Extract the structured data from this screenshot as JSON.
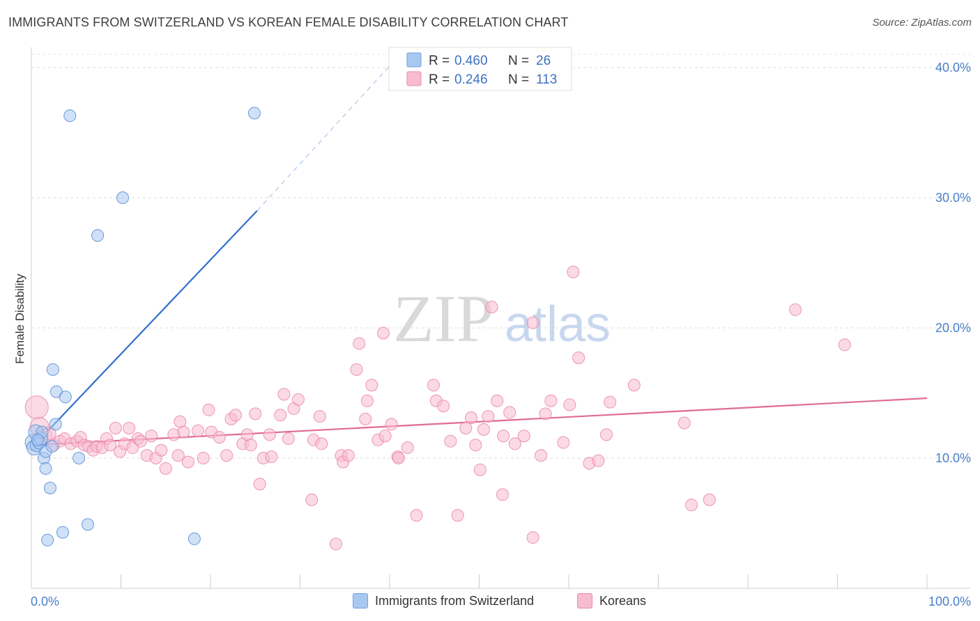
{
  "header": {
    "title": "IMMIGRANTS FROM SWITZERLAND VS KOREAN FEMALE DISABILITY CORRELATION CHART",
    "source": "Source: ZipAtlas.com"
  },
  "watermark": {
    "part1": "ZIP",
    "part2": "atlas"
  },
  "chart_data": {
    "type": "scatter",
    "ylabel": "Female Disability",
    "xlim": [
      0,
      100
    ],
    "ylim": [
      0,
      42
    ],
    "x_tick_labels": [
      {
        "value": 0,
        "label": "0.0%"
      },
      {
        "value": 100,
        "label": "100.0%"
      }
    ],
    "y_ticks": [
      {
        "value": 10,
        "label": "10.0%"
      },
      {
        "value": 20,
        "label": "20.0%"
      },
      {
        "value": 30,
        "label": "30.0%"
      },
      {
        "value": 40,
        "label": "40.0%"
      }
    ],
    "grid": "horizontal-dashed",
    "legend_top": [
      {
        "r_label": "R = ",
        "r_value": "0.460",
        "n_label": "N = ",
        "n_value": "26",
        "color": "#a9c8f0",
        "stroke": "#6e9fe0"
      },
      {
        "r_label": "R = ",
        "r_value": "0.246",
        "n_label": "N = ",
        "n_value": "113",
        "color": "#f7bcd0",
        "stroke": "#ea8aab"
      }
    ],
    "series": [
      {
        "name": "Immigrants from Switzerland",
        "color": "#a9c8f0",
        "stroke": "#5b8fd6",
        "trend_color": "#2f6fcc",
        "trend": {
          "x1": 0.2,
          "y1": 10.9,
          "x2": 25.2,
          "y2": 29.0,
          "dash_to_x": 40.5,
          "dash_to_y": 40.5
        },
        "points": [
          [
            0.2,
            11.2,
            10
          ],
          [
            0.3,
            10.8,
            9
          ],
          [
            0.5,
            12.0,
            9
          ],
          [
            0.6,
            11.0,
            8
          ],
          [
            0.9,
            11.2,
            8
          ],
          [
            1.1,
            11.5,
            8
          ],
          [
            1.2,
            12.0,
            7
          ],
          [
            1.4,
            10.0,
            7
          ],
          [
            1.6,
            9.2,
            7
          ],
          [
            1.6,
            10.5,
            7
          ],
          [
            1.8,
            3.7,
            7
          ],
          [
            2.1,
            7.7,
            7
          ],
          [
            2.3,
            10.9,
            7
          ],
          [
            2.4,
            16.8,
            7
          ],
          [
            2.7,
            12.6,
            7
          ],
          [
            2.8,
            15.1,
            7
          ],
          [
            3.5,
            4.3,
            7
          ],
          [
            3.8,
            14.7,
            7
          ],
          [
            4.3,
            36.3,
            7
          ],
          [
            5.3,
            10.0,
            7
          ],
          [
            6.3,
            4.9,
            7
          ],
          [
            7.4,
            27.1,
            7
          ],
          [
            10.2,
            30.0,
            7
          ],
          [
            18.2,
            3.8,
            7
          ],
          [
            24.9,
            36.5,
            7
          ],
          [
            0.7,
            11.4,
            7
          ]
        ]
      },
      {
        "name": "Koreans",
        "color": "#f7bcd0",
        "stroke": "#ea8aab",
        "trend_color": "#e06a96",
        "trend": {
          "x1": 0.2,
          "y1": 11.0,
          "x2": 100,
          "y2": 14.6
        },
        "points": [
          [
            0.6,
            13.9,
            15
          ],
          [
            0.9,
            12.4,
            12
          ],
          [
            1.5,
            11.7,
            9
          ],
          [
            2.0,
            11.9,
            8
          ],
          [
            2.5,
            11.0,
            7
          ],
          [
            3.2,
            11.3,
            7
          ],
          [
            3.7,
            11.5,
            7
          ],
          [
            4.4,
            11.1,
            7
          ],
          [
            5.1,
            11.3,
            7
          ],
          [
            5.5,
            11.6,
            7
          ],
          [
            5.9,
            11.0,
            7
          ],
          [
            6.4,
            10.9,
            7
          ],
          [
            6.9,
            10.6,
            7
          ],
          [
            7.3,
            10.9,
            7
          ],
          [
            7.9,
            10.8,
            7
          ],
          [
            8.4,
            11.5,
            7
          ],
          [
            8.8,
            11.0,
            7
          ],
          [
            9.4,
            12.3,
            7
          ],
          [
            9.9,
            10.5,
            7
          ],
          [
            10.4,
            11.1,
            7
          ],
          [
            10.9,
            12.3,
            7
          ],
          [
            11.3,
            10.8,
            7
          ],
          [
            11.9,
            11.5,
            7
          ],
          [
            12.2,
            11.3,
            7
          ],
          [
            12.9,
            10.2,
            7
          ],
          [
            13.4,
            11.7,
            7
          ],
          [
            13.9,
            10.0,
            7
          ],
          [
            14.5,
            10.6,
            7
          ],
          [
            15.0,
            9.2,
            7
          ],
          [
            15.9,
            11.8,
            7
          ],
          [
            16.4,
            10.2,
            7
          ],
          [
            16.6,
            12.8,
            7
          ],
          [
            17.0,
            12.0,
            7
          ],
          [
            17.5,
            9.7,
            7
          ],
          [
            18.6,
            12.1,
            7
          ],
          [
            19.2,
            10.0,
            7
          ],
          [
            19.8,
            13.7,
            7
          ],
          [
            20.1,
            12.0,
            7
          ],
          [
            21.0,
            11.6,
            7
          ],
          [
            21.8,
            10.2,
            7
          ],
          [
            22.3,
            13.0,
            7
          ],
          [
            22.8,
            13.3,
            7
          ],
          [
            23.6,
            11.1,
            7
          ],
          [
            24.1,
            11.8,
            7
          ],
          [
            24.5,
            11.0,
            7
          ],
          [
            25.0,
            13.4,
            7
          ],
          [
            25.5,
            8.0,
            7
          ],
          [
            25.9,
            10.0,
            7
          ],
          [
            26.8,
            10.1,
            7
          ],
          [
            26.6,
            11.8,
            7
          ],
          [
            27.8,
            13.3,
            7
          ],
          [
            28.2,
            14.9,
            7
          ],
          [
            28.7,
            11.5,
            7
          ],
          [
            29.3,
            13.8,
            7
          ],
          [
            29.8,
            14.5,
            7
          ],
          [
            31.3,
            6.8,
            7
          ],
          [
            31.5,
            11.4,
            7
          ],
          [
            32.2,
            13.2,
            7
          ],
          [
            32.4,
            11.1,
            7
          ],
          [
            34.0,
            3.4,
            7
          ],
          [
            34.6,
            10.2,
            7
          ],
          [
            34.8,
            9.7,
            7
          ],
          [
            35.4,
            10.2,
            7
          ],
          [
            36.3,
            16.8,
            7
          ],
          [
            36.6,
            18.8,
            7
          ],
          [
            37.5,
            14.4,
            7
          ],
          [
            37.3,
            13.0,
            7
          ],
          [
            38.0,
            15.6,
            7
          ],
          [
            38.7,
            11.4,
            7
          ],
          [
            39.3,
            19.6,
            7
          ],
          [
            39.5,
            11.7,
            7
          ],
          [
            40.2,
            12.6,
            7
          ],
          [
            40.9,
            10.1,
            7
          ],
          [
            41.0,
            10.0,
            7
          ],
          [
            42.0,
            10.8,
            7
          ],
          [
            43.0,
            5.6,
            7
          ],
          [
            44.9,
            15.6,
            7
          ],
          [
            45.2,
            14.4,
            7
          ],
          [
            46.8,
            11.3,
            7
          ],
          [
            47.6,
            5.6,
            7
          ],
          [
            48.5,
            12.3,
            7
          ],
          [
            49.1,
            13.1,
            7
          ],
          [
            49.6,
            11.0,
            7
          ],
          [
            50.1,
            9.1,
            7
          ],
          [
            50.5,
            12.2,
            7
          ],
          [
            51.0,
            13.2,
            7
          ],
          [
            51.4,
            21.6,
            7
          ],
          [
            52.0,
            14.4,
            7
          ],
          [
            52.6,
            7.2,
            7
          ],
          [
            52.7,
            11.7,
            7
          ],
          [
            53.4,
            13.5,
            7
          ],
          [
            54.0,
            11.1,
            7
          ],
          [
            55.0,
            11.7,
            7
          ],
          [
            56.0,
            3.9,
            7
          ],
          [
            56.0,
            20.4,
            7
          ],
          [
            56.9,
            10.2,
            7
          ],
          [
            57.4,
            13.4,
            7
          ],
          [
            59.4,
            11.2,
            7
          ],
          [
            60.1,
            14.1,
            7
          ],
          [
            60.5,
            24.3,
            7
          ],
          [
            61.1,
            17.7,
            7
          ],
          [
            62.3,
            9.6,
            7
          ],
          [
            63.3,
            9.8,
            7
          ],
          [
            64.2,
            11.8,
            7
          ],
          [
            64.6,
            14.3,
            7
          ],
          [
            67.3,
            15.6,
            7
          ],
          [
            72.9,
            12.7,
            7
          ],
          [
            73.7,
            6.4,
            7
          ],
          [
            75.7,
            6.8,
            7
          ],
          [
            85.3,
            21.4,
            7
          ],
          [
            90.8,
            18.7,
            7
          ],
          [
            58.0,
            14.4,
            7
          ],
          [
            46.0,
            14.0,
            7
          ]
        ]
      }
    ]
  }
}
